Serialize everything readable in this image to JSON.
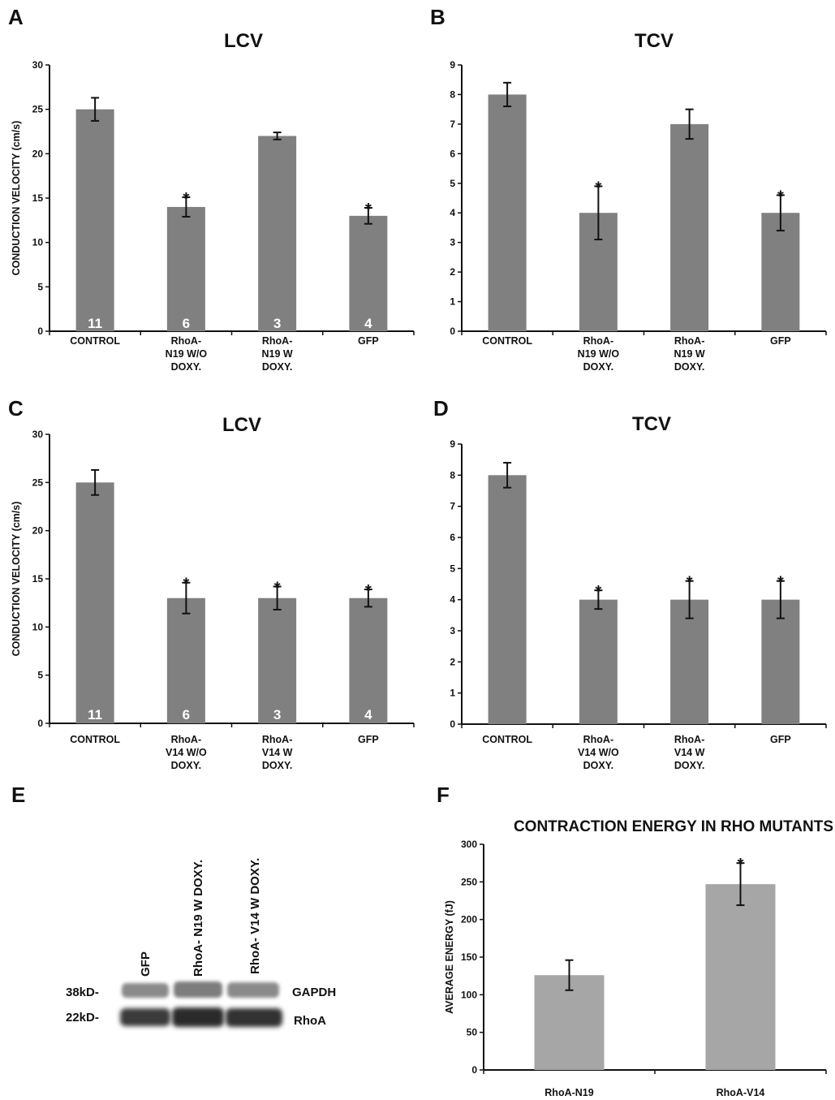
{
  "panels": {
    "A": "A",
    "B": "B",
    "C": "C",
    "D": "D",
    "E": "E",
    "F": "F"
  },
  "chart_data": [
    {
      "id": "A",
      "type": "bar",
      "title": "LCV",
      "ylabel": "CONDUCTION VELOCITY (cm/s)",
      "ylim": [
        0,
        30
      ],
      "yticks": [
        0,
        5,
        10,
        15,
        20,
        25,
        30
      ],
      "categories": [
        [
          "CONTROL"
        ],
        [
          "RhoA-",
          "N19 W/O",
          "DOXY."
        ],
        [
          "RhoA-",
          "N19 W",
          "DOXY."
        ],
        [
          "GFP"
        ]
      ],
      "values": [
        25,
        14,
        22,
        13
      ],
      "errors": [
        1.3,
        1.1,
        0.4,
        0.9
      ],
      "n_labels": [
        "11",
        "6",
        "3",
        "4"
      ],
      "significance": [
        "",
        "*",
        "",
        "*"
      ],
      "bar_color": "#808080"
    },
    {
      "id": "B",
      "type": "bar",
      "title": "TCV",
      "ylabel": "",
      "ylim": [
        0,
        9
      ],
      "yticks": [
        0,
        1,
        2,
        3,
        4,
        5,
        6,
        7,
        8,
        9
      ],
      "categories": [
        [
          "CONTROL"
        ],
        [
          "RhoA-",
          "N19 W/O",
          "DOXY."
        ],
        [
          "RhoA-",
          "N19 W",
          "DOXY."
        ],
        [
          "GFP"
        ]
      ],
      "values": [
        8,
        4,
        7,
        4
      ],
      "errors": [
        0.4,
        0.9,
        0.5,
        0.6
      ],
      "n_labels": [],
      "significance": [
        "",
        "*",
        "",
        "*"
      ],
      "bar_color": "#808080"
    },
    {
      "id": "C",
      "type": "bar",
      "title": "LCV",
      "ylabel": "CONDUCTION VELOCITY (cm/s)",
      "ylim": [
        0,
        30
      ],
      "yticks": [
        0,
        5,
        10,
        15,
        20,
        25,
        30
      ],
      "categories": [
        [
          "CONTROL"
        ],
        [
          "RhoA-",
          "V14 W/O",
          "DOXY."
        ],
        [
          "RhoA-",
          "V14 W",
          "DOXY."
        ],
        [
          "GFP"
        ]
      ],
      "values": [
        25,
        13,
        13,
        13
      ],
      "errors": [
        1.3,
        1.6,
        1.2,
        0.9
      ],
      "n_labels": [
        "11",
        "6",
        "3",
        "4"
      ],
      "significance": [
        "",
        "*",
        "*",
        "*"
      ],
      "bar_color": "#808080"
    },
    {
      "id": "D",
      "type": "bar",
      "title": "TCV",
      "ylabel": "",
      "ylim": [
        0,
        9
      ],
      "yticks": [
        0,
        1,
        2,
        3,
        4,
        5,
        6,
        7,
        8,
        9
      ],
      "categories": [
        [
          "CONTROL"
        ],
        [
          "RhoA-",
          "V14 W/O",
          "DOXY."
        ],
        [
          "RhoA-",
          "V14 W",
          "DOXY."
        ],
        [
          "GFP"
        ]
      ],
      "values": [
        8,
        4,
        4,
        4
      ],
      "errors": [
        0.4,
        0.3,
        0.6,
        0.6
      ],
      "n_labels": [],
      "significance": [
        "",
        "*",
        "*",
        "*"
      ],
      "bar_color": "#808080"
    },
    {
      "id": "F",
      "type": "bar",
      "title": "CONTRACTION ENERGY IN RHO MUTANTS",
      "ylabel": "AVERAGE ENERGY (fJ)",
      "ylim": [
        0,
        300
      ],
      "yticks": [
        0,
        50,
        100,
        150,
        200,
        250,
        300
      ],
      "categories": [
        [
          "RhoA-N19"
        ],
        [
          "RhoA-V14"
        ]
      ],
      "values": [
        126,
        247
      ],
      "errors": [
        20,
        28
      ],
      "n_labels": [],
      "significance": [
        "",
        "*"
      ],
      "bar_color": "#a6a6a6"
    }
  ],
  "blot": {
    "lanes": [
      "GFP",
      "RhoA- N19 W DOXY.",
      "RhoA- V14 W DOXY."
    ],
    "markers": [
      "38kD-",
      "22kD-"
    ],
    "bands": [
      "GAPDH",
      "RhoA"
    ]
  }
}
